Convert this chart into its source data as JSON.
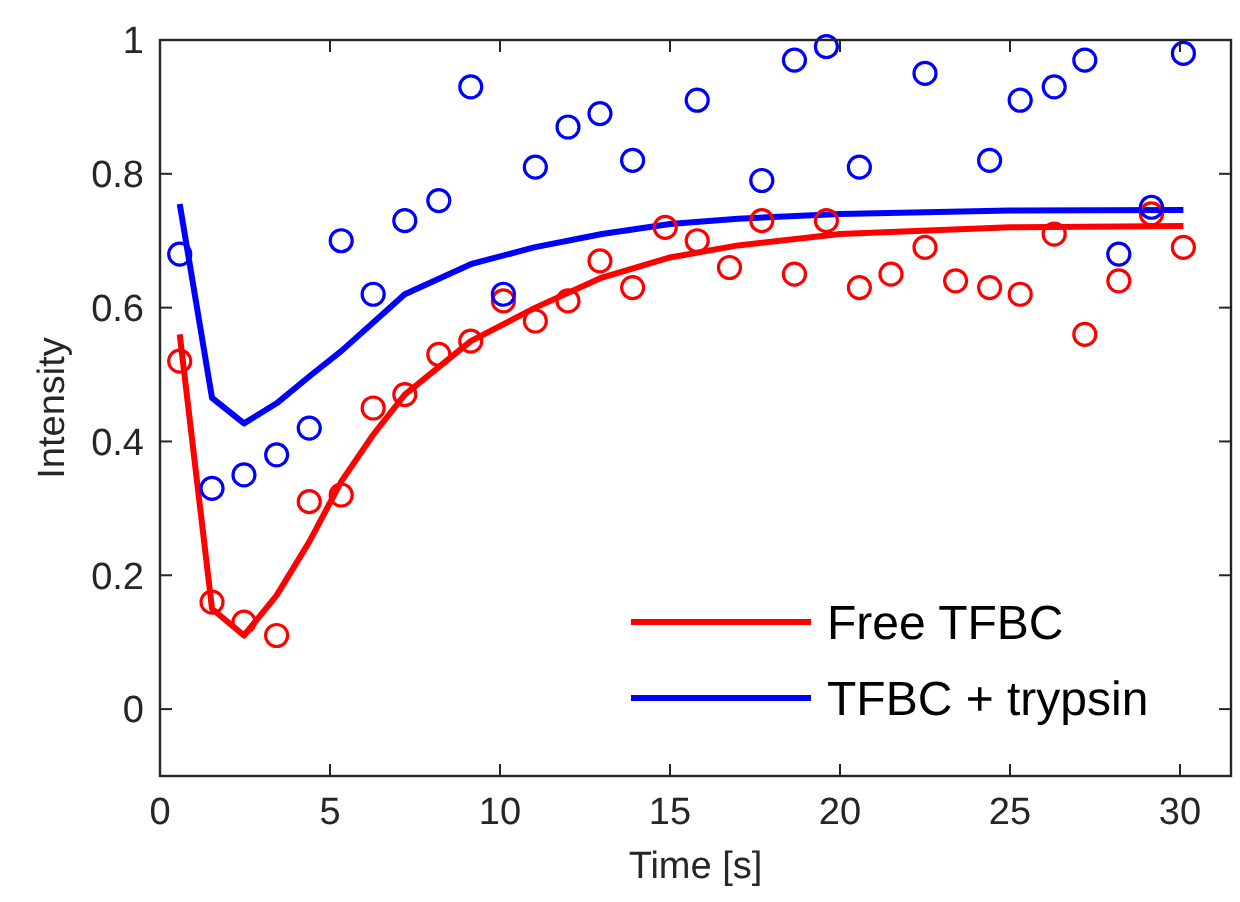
{
  "chart_data": {
    "type": "line",
    "xlabel": "Time [s]",
    "ylabel": "Intensity",
    "xlim": [
      0,
      31.5
    ],
    "ylim": [
      -0.1,
      1
    ],
    "xticks": [
      0,
      5,
      10,
      15,
      20,
      25,
      30
    ],
    "yticks": [
      0,
      {
        "value": 0.2,
        "label": "0.2"
      },
      {
        "value": 0.4,
        "label": "0.4"
      },
      {
        "value": 0.6,
        "label": "0.6"
      },
      {
        "value": 0.8,
        "label": "0.8"
      },
      1
    ],
    "grid": false,
    "legend": "bottom right",
    "series": [
      {
        "type": "scatter",
        "marker": "circle",
        "color": "#ff0000",
        "x": [
          0.58,
          1.53,
          2.47,
          3.43,
          4.39,
          5.33,
          6.27,
          7.2,
          8.2,
          9.14,
          10.1,
          11.04,
          12.0,
          12.94,
          13.9,
          14.86,
          15.8,
          16.75,
          17.7,
          18.66,
          19.6,
          20.57,
          21.5,
          22.5,
          23.4,
          24.4,
          25.3,
          26.3,
          27.2,
          28.2,
          29.16,
          30.1
        ],
        "values": [
          0.52,
          0.16,
          0.13,
          0.11,
          0.31,
          0.32,
          0.45,
          0.47,
          0.53,
          0.55,
          0.61,
          0.58,
          0.61,
          0.67,
          0.63,
          0.72,
          0.7,
          0.66,
          0.73,
          0.65,
          0.73,
          0.63,
          0.65,
          0.69,
          0.64,
          0.63,
          0.62,
          0.71,
          0.56,
          0.64,
          0.74,
          0.69
        ]
      },
      {
        "type": "scatter",
        "marker": "circle",
        "color": "#0000ff",
        "x": [
          0.58,
          1.53,
          2.47,
          3.43,
          4.39,
          5.33,
          6.27,
          7.2,
          8.2,
          9.14,
          10.1,
          11.04,
          12.0,
          12.94,
          13.9,
          15.8,
          17.7,
          18.66,
          19.6,
          20.57,
          22.5,
          24.4,
          25.3,
          26.3,
          27.2,
          28.2,
          29.16,
          30.1
        ],
        "values": [
          0.68,
          0.33,
          0.35,
          0.38,
          0.42,
          0.7,
          0.62,
          0.73,
          0.76,
          0.93,
          0.62,
          0.81,
          0.87,
          0.89,
          0.82,
          0.91,
          0.79,
          0.97,
          0.99,
          0.81,
          0.95,
          0.82,
          0.91,
          0.93,
          0.97,
          0.68,
          0.75,
          0.98
        ]
      },
      {
        "name": "Free TFBC",
        "color": "#ff0000",
        "line_style": "solid",
        "x": [
          0.58,
          1.53,
          2.47,
          3.43,
          4.39,
          5.33,
          6.27,
          7.2,
          9.14,
          11.04,
          13,
          15,
          17,
          20,
          25,
          30.1
        ],
        "values": [
          0.56,
          0.15,
          0.11,
          0.17,
          0.25,
          0.34,
          0.41,
          0.47,
          0.55,
          0.6,
          0.645,
          0.675,
          0.693,
          0.71,
          0.72,
          0.722
        ]
      },
      {
        "name": "TFBC + trypsin",
        "color": "#0000ff",
        "line_style": "solid",
        "x": [
          0.58,
          1.53,
          2.47,
          3.43,
          4.39,
          5.33,
          7.2,
          9.14,
          11,
          13,
          15,
          17,
          20,
          25,
          30.1
        ],
        "values": [
          0.755,
          0.465,
          0.427,
          0.457,
          0.497,
          0.535,
          0.62,
          0.665,
          0.69,
          0.71,
          0.725,
          0.733,
          0.74,
          0.745,
          0.746
        ]
      }
    ]
  }
}
